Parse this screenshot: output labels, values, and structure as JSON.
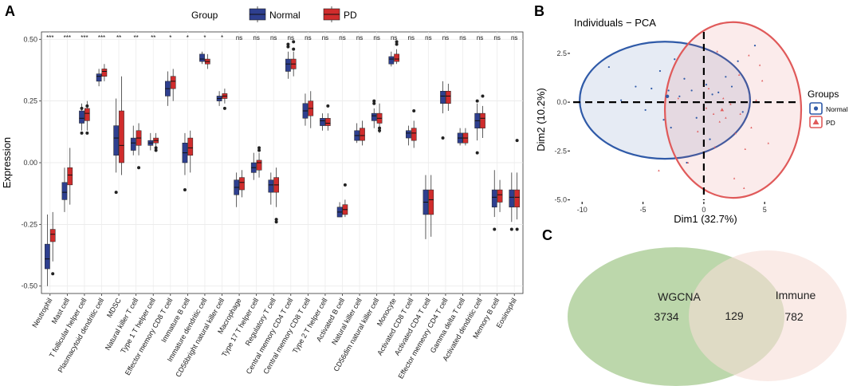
{
  "panels": {
    "a": "A",
    "b": "B",
    "c": "C"
  },
  "chart_data": [
    {
      "type": "box",
      "legend_title": "Group",
      "series": [
        {
          "name": "Normal",
          "color": "#2e3f8f"
        },
        {
          "name": "PD",
          "color": "#d02c2c"
        }
      ],
      "ylabel": "Expression",
      "xlabel": "",
      "ylim": [
        -0.53,
        0.53
      ],
      "yticks": [
        -0.5,
        -0.25,
        0.0,
        0.25,
        0.5
      ],
      "ytick_labels": [
        "-0.50",
        "-0.25",
        "0.00",
        "0.25",
        "0.50"
      ],
      "categories": [
        {
          "name": "Neutrophil",
          "sig": "***",
          "normal": {
            "lw": -0.5,
            "q1": -0.43,
            "med": -0.39,
            "q3": -0.33,
            "uw": -0.21,
            "out": []
          },
          "pd": {
            "lw": -0.4,
            "q1": -0.32,
            "med": -0.29,
            "q3": -0.27,
            "uw": -0.2,
            "out": [
              -0.45
            ]
          }
        },
        {
          "name": "Mast cell",
          "sig": "***",
          "normal": {
            "lw": -0.2,
            "q1": -0.15,
            "med": -0.12,
            "q3": -0.08,
            "uw": -0.02,
            "out": []
          },
          "pd": {
            "lw": -0.17,
            "q1": -0.09,
            "med": -0.05,
            "q3": -0.02,
            "uw": 0.06,
            "out": []
          }
        },
        {
          "name": "T follicular helper cell",
          "sig": "***",
          "normal": {
            "lw": 0.13,
            "q1": 0.16,
            "med": 0.18,
            "q3": 0.21,
            "uw": 0.24,
            "out": [
              0.22,
              0.12
            ]
          },
          "pd": {
            "lw": 0.13,
            "q1": 0.17,
            "med": 0.2,
            "q3": 0.22,
            "uw": 0.25,
            "out": [
              0.12,
              0.23
            ]
          }
        },
        {
          "name": "Plasmacytoid dendritic cell",
          "sig": "***",
          "normal": {
            "lw": 0.31,
            "q1": 0.33,
            "med": 0.35,
            "q3": 0.36,
            "uw": 0.38,
            "out": []
          },
          "pd": {
            "lw": 0.33,
            "q1": 0.35,
            "med": 0.37,
            "q3": 0.38,
            "uw": 0.4,
            "out": []
          }
        },
        {
          "name": "MDSC",
          "sig": "**",
          "normal": {
            "lw": -0.04,
            "q1": 0.03,
            "med": 0.1,
            "q3": 0.15,
            "uw": 0.26,
            "out": [
              -0.12
            ]
          },
          "pd": {
            "lw": -0.05,
            "q1": 0.0,
            "med": 0.07,
            "q3": 0.21,
            "uw": 0.35,
            "out": []
          }
        },
        {
          "name": "Natural killer T cell",
          "sig": "**",
          "normal": {
            "lw": 0.03,
            "q1": 0.05,
            "med": 0.08,
            "q3": 0.1,
            "uw": 0.15,
            "out": []
          },
          "pd": {
            "lw": 0.03,
            "q1": 0.07,
            "med": 0.1,
            "q3": 0.13,
            "uw": 0.16,
            "out": [
              -0.02
            ]
          }
        },
        {
          "name": "Type 1 T helper cell",
          "sig": "**",
          "normal": {
            "lw": 0.05,
            "q1": 0.07,
            "med": 0.08,
            "q3": 0.09,
            "uw": 0.12,
            "out": []
          },
          "pd": {
            "lw": 0.06,
            "q1": 0.08,
            "med": 0.09,
            "q3": 0.1,
            "uw": 0.12,
            "out": [
              0.05,
              0.06
            ]
          }
        },
        {
          "name": "Effector memory CD8 T cell",
          "sig": "*",
          "normal": {
            "lw": 0.23,
            "q1": 0.27,
            "med": 0.3,
            "q3": 0.33,
            "uw": 0.37,
            "out": []
          },
          "pd": {
            "lw": 0.25,
            "q1": 0.3,
            "med": 0.33,
            "q3": 0.35,
            "uw": 0.38,
            "out": []
          }
        },
        {
          "name": "Immature B cell",
          "sig": "*",
          "normal": {
            "lw": -0.05,
            "q1": 0.0,
            "med": 0.04,
            "q3": 0.08,
            "uw": 0.12,
            "out": [
              -0.11
            ]
          },
          "pd": {
            "lw": -0.04,
            "q1": 0.03,
            "med": 0.06,
            "q3": 0.1,
            "uw": 0.13,
            "out": []
          }
        },
        {
          "name": "Immature dendritic cell",
          "sig": "*",
          "normal": {
            "lw": 0.4,
            "q1": 0.41,
            "med": 0.42,
            "q3": 0.44,
            "uw": 0.45,
            "out": []
          },
          "pd": {
            "lw": 0.38,
            "q1": 0.4,
            "med": 0.41,
            "q3": 0.42,
            "uw": 0.44,
            "out": []
          }
        },
        {
          "name": "CD56bright natural killer cell",
          "sig": "*",
          "normal": {
            "lw": 0.23,
            "q1": 0.25,
            "med": 0.26,
            "q3": 0.27,
            "uw": 0.29,
            "out": []
          },
          "pd": {
            "lw": 0.24,
            "q1": 0.26,
            "med": 0.27,
            "q3": 0.28,
            "uw": 0.3,
            "out": [
              0.22
            ]
          }
        },
        {
          "name": "Macrophage",
          "sig": "ns",
          "normal": {
            "lw": -0.18,
            "q1": -0.13,
            "med": -0.1,
            "q3": -0.07,
            "uw": -0.04,
            "out": []
          },
          "pd": {
            "lw": -0.14,
            "q1": -0.11,
            "med": -0.08,
            "q3": -0.06,
            "uw": -0.03,
            "out": []
          }
        },
        {
          "name": "Type 17 T helper cell",
          "sig": "ns",
          "normal": {
            "lw": -0.07,
            "q1": -0.04,
            "med": -0.02,
            "q3": 0.0,
            "uw": 0.04,
            "out": []
          },
          "pd": {
            "lw": -0.06,
            "q1": -0.03,
            "med": 0.0,
            "q3": 0.01,
            "uw": 0.04,
            "out": [
              0.05,
              0.06
            ]
          }
        },
        {
          "name": "Regulatory T cell",
          "sig": "ns",
          "normal": {
            "lw": -0.17,
            "q1": -0.12,
            "med": -0.09,
            "q3": -0.07,
            "uw": -0.04,
            "out": []
          },
          "pd": {
            "lw": -0.18,
            "q1": -0.12,
            "med": -0.09,
            "q3": -0.06,
            "uw": -0.02,
            "out": [
              -0.23,
              -0.24
            ]
          }
        },
        {
          "name": "Central memory CD4 T cell",
          "sig": "ns",
          "normal": {
            "lw": 0.34,
            "q1": 0.37,
            "med": 0.4,
            "q3": 0.42,
            "uw": 0.45,
            "out": [
              0.47,
              0.48
            ]
          },
          "pd": {
            "lw": 0.35,
            "q1": 0.38,
            "med": 0.4,
            "q3": 0.42,
            "uw": 0.45,
            "out": [
              0.49,
              0.46
            ]
          }
        },
        {
          "name": "Central memory CD8 T cell",
          "sig": "ns",
          "normal": {
            "lw": 0.15,
            "q1": 0.18,
            "med": 0.21,
            "q3": 0.24,
            "uw": 0.28,
            "out": []
          },
          "pd": {
            "lw": 0.14,
            "q1": 0.19,
            "med": 0.22,
            "q3": 0.25,
            "uw": 0.29,
            "out": []
          }
        },
        {
          "name": "Type 2 T helper cell",
          "sig": "ns",
          "normal": {
            "lw": 0.13,
            "q1": 0.15,
            "med": 0.17,
            "q3": 0.18,
            "uw": 0.2,
            "out": []
          },
          "pd": {
            "lw": 0.13,
            "q1": 0.15,
            "med": 0.16,
            "q3": 0.18,
            "uw": 0.2,
            "out": [
              0.23
            ]
          }
        },
        {
          "name": "Activated B cell",
          "sig": "ns",
          "normal": {
            "lw": -0.22,
            "q1": -0.22,
            "med": -0.2,
            "q3": -0.18,
            "uw": -0.16,
            "out": []
          },
          "pd": {
            "lw": -0.22,
            "q1": -0.21,
            "med": -0.19,
            "q3": -0.17,
            "uw": -0.15,
            "out": [
              -0.09
            ]
          }
        },
        {
          "name": "Natural killer cell",
          "sig": "ns",
          "normal": {
            "lw": 0.08,
            "q1": 0.09,
            "med": 0.11,
            "q3": 0.13,
            "uw": 0.16,
            "out": []
          },
          "pd": {
            "lw": 0.07,
            "q1": 0.09,
            "med": 0.11,
            "q3": 0.14,
            "uw": 0.17,
            "out": []
          }
        },
        {
          "name": "CD56dim natural killer cell",
          "sig": "ns",
          "normal": {
            "lw": 0.14,
            "q1": 0.17,
            "med": 0.19,
            "q3": 0.2,
            "uw": 0.22,
            "out": [
              0.24,
              0.25
            ]
          },
          "pd": {
            "lw": 0.12,
            "q1": 0.16,
            "med": 0.18,
            "q3": 0.2,
            "uw": 0.24,
            "out": [
              0.13,
              0.14
            ]
          }
        },
        {
          "name": "Monocyte",
          "sig": "ns",
          "normal": {
            "lw": 0.39,
            "q1": 0.4,
            "med": 0.42,
            "q3": 0.43,
            "uw": 0.45,
            "out": []
          },
          "pd": {
            "lw": 0.4,
            "q1": 0.41,
            "med": 0.42,
            "q3": 0.44,
            "uw": 0.46,
            "out": [
              0.48,
              0.49
            ]
          }
        },
        {
          "name": "Activated CD8 T cell",
          "sig": "ns",
          "normal": {
            "lw": 0.07,
            "q1": 0.1,
            "med": 0.12,
            "q3": 0.13,
            "uw": 0.15,
            "out": []
          },
          "pd": {
            "lw": 0.06,
            "q1": 0.09,
            "med": 0.12,
            "q3": 0.14,
            "uw": 0.17,
            "out": [
              0.21
            ]
          }
        },
        {
          "name": "Activated CD4 T cell",
          "sig": "ns",
          "normal": {
            "lw": -0.31,
            "q1": -0.21,
            "med": -0.16,
            "q3": -0.11,
            "uw": -0.05,
            "out": []
          },
          "pd": {
            "lw": -0.3,
            "q1": -0.21,
            "med": -0.15,
            "q3": -0.11,
            "uw": -0.05,
            "out": []
          }
        },
        {
          "name": "Effector memeory CD4 T cell",
          "sig": "ns",
          "normal": {
            "lw": 0.2,
            "q1": 0.24,
            "med": 0.27,
            "q3": 0.29,
            "uw": 0.33,
            "out": [
              0.1
            ]
          },
          "pd": {
            "lw": 0.21,
            "q1": 0.24,
            "med": 0.27,
            "q3": 0.29,
            "uw": 0.32,
            "out": []
          }
        },
        {
          "name": "Gamma delta T cell",
          "sig": "ns",
          "normal": {
            "lw": 0.07,
            "q1": 0.08,
            "med": 0.1,
            "q3": 0.12,
            "uw": 0.14,
            "out": []
          },
          "pd": {
            "lw": 0.07,
            "q1": 0.08,
            "med": 0.1,
            "q3": 0.12,
            "uw": 0.14,
            "out": []
          }
        },
        {
          "name": "Activated dendritic cell",
          "sig": "ns",
          "normal": {
            "lw": 0.09,
            "q1": 0.14,
            "med": 0.17,
            "q3": 0.2,
            "uw": 0.24,
            "out": [
              0.04,
              0.25
            ]
          },
          "pd": {
            "lw": 0.1,
            "q1": 0.14,
            "med": 0.18,
            "q3": 0.2,
            "uw": 0.23,
            "out": [
              0.27
            ]
          }
        },
        {
          "name": "Memory B cell",
          "sig": "ns",
          "normal": {
            "lw": -0.22,
            "q1": -0.18,
            "med": -0.14,
            "q3": -0.11,
            "uw": -0.03,
            "out": [
              -0.27
            ]
          },
          "pd": {
            "lw": -0.2,
            "q1": -0.16,
            "med": -0.13,
            "q3": -0.11,
            "uw": -0.07,
            "out": []
          }
        },
        {
          "name": "Eosinophil",
          "sig": "ns",
          "normal": {
            "lw": -0.24,
            "q1": -0.18,
            "med": -0.14,
            "q3": -0.11,
            "uw": -0.04,
            "out": [
              -0.27
            ]
          },
          "pd": {
            "lw": -0.23,
            "q1": -0.18,
            "med": -0.14,
            "q3": -0.11,
            "uw": -0.04,
            "out": [
              0.09,
              -0.27
            ]
          }
        }
      ]
    },
    {
      "type": "scatter",
      "title": "Individuals − PCA",
      "xlabel": "Dim1 (32.7%)",
      "ylabel": "Dim2 (10.2%)",
      "xlim": [
        -11.0,
        8.0
      ],
      "ylim": [
        -5.1,
        3.6
      ],
      "xticks": [
        -10,
        -5,
        0,
        5
      ],
      "yticks": [
        -5.0,
        -2.5,
        0.0,
        2.5
      ],
      "ytick_labels": [
        "-5.0",
        "-2.5",
        "0.0",
        "2.5"
      ],
      "legend_title": "Groups",
      "series": [
        {
          "name": "Normal",
          "color": "#2f5aa8",
          "ellipse": {
            "cx": -3.2,
            "cy": 0.1,
            "rx": 7.0,
            "ry": 3.0
          },
          "centroid": [
            -3.0,
            0.3
          ],
          "points": [
            [
              -7.8,
              1.8
            ],
            [
              -6.8,
              0.1
            ],
            [
              -5.6,
              0.8
            ],
            [
              -4.3,
              0.7
            ],
            [
              -3.6,
              1.6
            ],
            [
              -2.9,
              0.6
            ],
            [
              -2.4,
              2.2
            ],
            [
              -2.0,
              0.3
            ],
            [
              -1.6,
              1.2
            ],
            [
              -1.0,
              0.6
            ],
            [
              -0.6,
              -0.8
            ],
            [
              0.2,
              0.9
            ],
            [
              0.7,
              0.4
            ],
            [
              1.2,
              0.5
            ],
            [
              1.8,
              1.3
            ],
            [
              2.3,
              0.8
            ],
            [
              2.8,
              2.1
            ],
            [
              3.2,
              -0.5
            ],
            [
              -4.8,
              -0.4
            ],
            [
              -3.3,
              -0.9
            ],
            [
              -1.4,
              -3.1
            ],
            [
              0.5,
              -1.9
            ],
            [
              4.2,
              2.9
            ],
            [
              -2.7,
              -1.3
            ]
          ]
        },
        {
          "name": "PD",
          "color": "#e05a5a",
          "ellipse": {
            "cx": 2.4,
            "cy": -0.4,
            "rx": 5.6,
            "ry": 4.5
          },
          "centroid": [
            1.5,
            -0.4
          ],
          "points": [
            [
              -3.7,
              -3.5
            ],
            [
              -1.3,
              -3.1
            ],
            [
              0.2,
              -0.3
            ],
            [
              0.8,
              -0.6
            ],
            [
              1.3,
              -1.0
            ],
            [
              1.8,
              -0.8
            ],
            [
              2.2,
              -0.1
            ],
            [
              2.6,
              -1.6
            ],
            [
              3.0,
              -0.6
            ],
            [
              3.4,
              -2.4
            ],
            [
              3.9,
              -1.3
            ],
            [
              4.3,
              0.1
            ],
            [
              4.8,
              1.1
            ],
            [
              1.1,
              2.6
            ],
            [
              0.4,
              0.7
            ],
            [
              1.6,
              0.2
            ],
            [
              2.9,
              1.4
            ],
            [
              5.3,
              -2.1
            ],
            [
              -0.5,
              -1.5
            ],
            [
              2.5,
              -3.9
            ],
            [
              3.7,
              2.4
            ],
            [
              -2.1,
              0.2
            ],
            [
              4.6,
              1.9
            ],
            [
              0.9,
              -2.3
            ],
            [
              3.3,
              -4.4
            ]
          ]
        }
      ]
    },
    {
      "type": "venn",
      "sets": [
        {
          "name": "WGCNA",
          "only": "3734",
          "color": "#a6c98f"
        },
        {
          "name": "Immune",
          "only": "782",
          "color": "#f7ddd7"
        }
      ],
      "intersection": "129"
    }
  ]
}
